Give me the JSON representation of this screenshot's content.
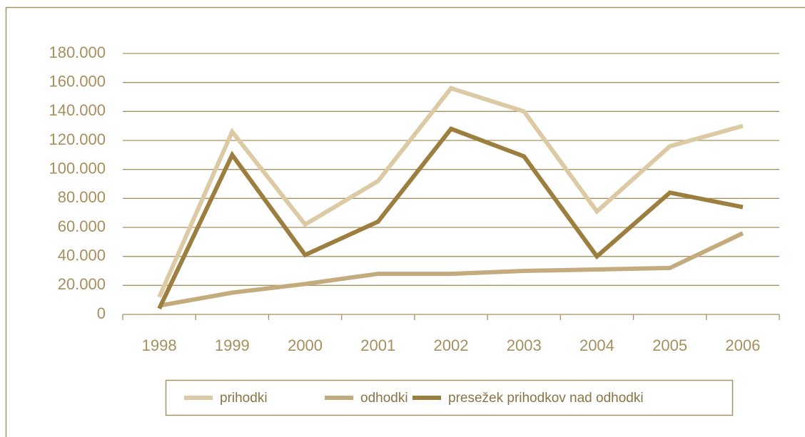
{
  "chart_data": {
    "type": "line",
    "categories": [
      "1998",
      "1999",
      "2000",
      "2001",
      "2002",
      "2003",
      "2004",
      "2005",
      "2006"
    ],
    "series": [
      {
        "name": "prihodki",
        "color": "#dccaa5",
        "values": [
          12000,
          126000,
          62000,
          92000,
          156000,
          140000,
          71000,
          116000,
          130000
        ]
      },
      {
        "name": "odhodki",
        "color": "#c4ab7d",
        "values": [
          6000,
          15000,
          21000,
          28000,
          28000,
          30000,
          31000,
          32000,
          56000
        ]
      },
      {
        "name": "presežek prihodkov nad odhodki",
        "color": "#9c7e3f",
        "values": [
          4000,
          110000,
          41000,
          64000,
          128000,
          109000,
          40000,
          84000,
          74000
        ]
      }
    ],
    "ylim": [
      0,
      180000
    ],
    "yticks": [
      0,
      {
        "value": 20000,
        "label": "20.000"
      },
      {
        "value": 40000,
        "label": "40.000"
      },
      {
        "value": 60000,
        "label": "60.000"
      },
      {
        "value": 80000,
        "label": "80.000"
      },
      {
        "value": 100000,
        "label": "100.000"
      },
      {
        "value": 120000,
        "label": "120.000"
      },
      {
        "value": 140000,
        "label": "140.000"
      },
      {
        "value": 160000,
        "label": "160.000"
      },
      {
        "value": 180000,
        "label": "180.000"
      }
    ],
    "grid": true,
    "legend": "bottom"
  }
}
